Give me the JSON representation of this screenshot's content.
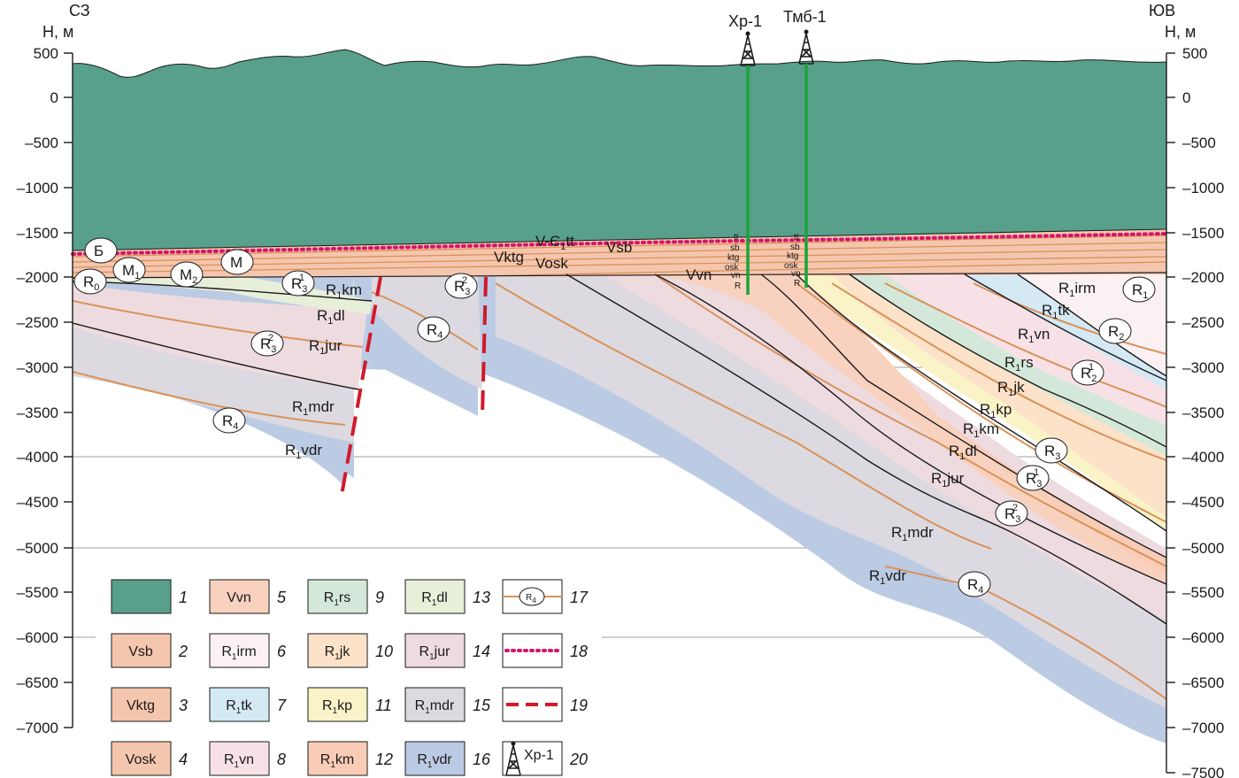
{
  "header": {
    "left_dir": "СЗ",
    "left_unit": "Н, м",
    "right_dir": "ЮВ",
    "right_unit": "Н, м"
  },
  "axis": {
    "left_ticks": [
      "500",
      "0",
      "–500",
      "–1000",
      "–1500",
      "–2000",
      "–2500",
      "–3000",
      "–3500",
      "–4000",
      "–4500",
      "–5000",
      "–5500",
      "–6000",
      "–6500",
      "–7000"
    ],
    "right_ticks": [
      "500",
      "0",
      "–500",
      "–1000",
      "–1500",
      "–2000",
      "–2500",
      "–3000",
      "–3500",
      "–4000",
      "–4500",
      "–5000",
      "–5500",
      "–6000",
      "–6500",
      "–7000",
      "–7500"
    ]
  },
  "wells": [
    {
      "name": "Хр-1",
      "intervals": [
        "tt",
        "sb",
        "ktg",
        "osk",
        "vn",
        "R"
      ]
    },
    {
      "name": "Тмб-1",
      "intervals": [
        "tt",
        "sb",
        "ktg",
        "osk",
        "vn",
        "R"
      ]
    }
  ],
  "sections_top": {
    "vctt": "V-Є",
    "vctt_sub": "1",
    "vctt_tail": "tt",
    "vsb": "Vsb",
    "vktg": "Vktg",
    "vosk": "Vosk",
    "vvn": "Vvn"
  },
  "formation_labels": [
    {
      "base": "R",
      "sub": "1",
      "tail": "km"
    },
    {
      "base": "R",
      "sub": "1",
      "tail": "dl"
    },
    {
      "base": "R",
      "sub": "1",
      "tail": "jur"
    },
    {
      "base": "R",
      "sub": "1",
      "tail": "mdr"
    },
    {
      "base": "R",
      "sub": "1",
      "tail": "vdr"
    },
    {
      "base": "R",
      "sub": "1",
      "tail": "irm"
    },
    {
      "base": "R",
      "sub": "1",
      "tail": "tk"
    },
    {
      "base": "R",
      "sub": "1",
      "tail": "vn"
    },
    {
      "base": "R",
      "sub": "1",
      "tail": "rs"
    },
    {
      "base": "R",
      "sub": "1",
      "tail": "jk"
    },
    {
      "base": "R",
      "sub": "1",
      "tail": "kp"
    },
    {
      "base": "R",
      "sub": "1",
      "tail": "km"
    },
    {
      "base": "R",
      "sub": "1",
      "tail": "dl"
    },
    {
      "base": "R",
      "sub": "1",
      "tail": "jur"
    },
    {
      "base": "R",
      "sub": "1",
      "tail": "mdr"
    },
    {
      "base": "R",
      "sub": "1",
      "tail": "vdr"
    }
  ],
  "reflectors": [
    {
      "base": "Б",
      "sub": "",
      "sup": ""
    },
    {
      "base": "R",
      "sub": "0",
      "sup": ""
    },
    {
      "base": "M",
      "sub": "1",
      "sup": ""
    },
    {
      "base": "M",
      "sub": "2",
      "sup": ""
    },
    {
      "base": "M",
      "sub": "",
      "sup": ""
    },
    {
      "base": "R",
      "sub": "3",
      "sup": "1"
    },
    {
      "base": "R",
      "sub": "3",
      "sup": "2"
    },
    {
      "base": "R",
      "sub": "3",
      "sup": "2"
    },
    {
      "base": "R",
      "sub": "4",
      "sup": ""
    },
    {
      "base": "R",
      "sub": "4",
      "sup": ""
    },
    {
      "base": "R",
      "sub": "1",
      "sup": ""
    },
    {
      "base": "R",
      "sub": "2",
      "sup": ""
    },
    {
      "base": "R",
      "sub": "2",
      "sup": "1"
    },
    {
      "base": "R",
      "sub": "3",
      "sup": ""
    },
    {
      "base": "R",
      "sub": "3",
      "sup": "1"
    },
    {
      "base": "R",
      "sub": "3",
      "sup": "2"
    },
    {
      "base": "R",
      "sub": "4",
      "sup": ""
    }
  ],
  "legend": [
    {
      "num": "1",
      "code": "",
      "sub": "",
      "tail": "",
      "color": "#58a08b"
    },
    {
      "num": "2",
      "code": "Vsb",
      "sub": "",
      "tail": "",
      "color": "#f5c6ae"
    },
    {
      "num": "3",
      "code": "Vktg",
      "sub": "",
      "tail": "",
      "color": "#f5c6ae"
    },
    {
      "num": "4",
      "code": "Vosk",
      "sub": "",
      "tail": "",
      "color": "#f5c6ae"
    },
    {
      "num": "5",
      "code": "Vvn",
      "sub": "",
      "tail": "",
      "color": "#f8d2be"
    },
    {
      "num": "6",
      "code": "R",
      "sub": "1",
      "tail": "irm",
      "color": "#fbf1f2"
    },
    {
      "num": "7",
      "code": "R",
      "sub": "1",
      "tail": "tk",
      "color": "#d5e9f5"
    },
    {
      "num": "8",
      "code": "R",
      "sub": "1",
      "tail": "vn",
      "color": "#f8e1e6"
    },
    {
      "num": "9",
      "code": "R",
      "sub": "1",
      "tail": "rs",
      "color": "#d3e8d8"
    },
    {
      "num": "10",
      "code": "R",
      "sub": "1",
      "tail": "jk",
      "color": "#fbe2c8"
    },
    {
      "num": "11",
      "code": "R",
      "sub": "1",
      "tail": "kp",
      "color": "#fbf3c8"
    },
    {
      "num": "12",
      "code": "R",
      "sub": "1",
      "tail": "km",
      "color": "#f8ccb6"
    },
    {
      "num": "13",
      "code": "R",
      "sub": "1",
      "tail": "dl",
      "color": "#e8efd9"
    },
    {
      "num": "14",
      "code": "R",
      "sub": "1",
      "tail": "jur",
      "color": "#eedbe0"
    },
    {
      "num": "15",
      "code": "R",
      "sub": "1",
      "tail": "mdr",
      "color": "#dcd9e0"
    },
    {
      "num": "16",
      "code": "R",
      "sub": "1",
      "tail": "vdr",
      "color": "#bccbe4"
    },
    {
      "num": "17",
      "code": "R",
      "sub": "4",
      "tail": "",
      "color": "#d9925a"
    },
    {
      "num": "18",
      "code": "",
      "sub": "",
      "tail": "",
      "color": "#d4156c"
    },
    {
      "num": "19",
      "code": "",
      "sub": "",
      "tail": "",
      "color": "#d11a2a"
    },
    {
      "num": "20",
      "code": "Хр-1",
      "sub": "",
      "tail": "",
      "color": "#1a1a1a"
    }
  ]
}
